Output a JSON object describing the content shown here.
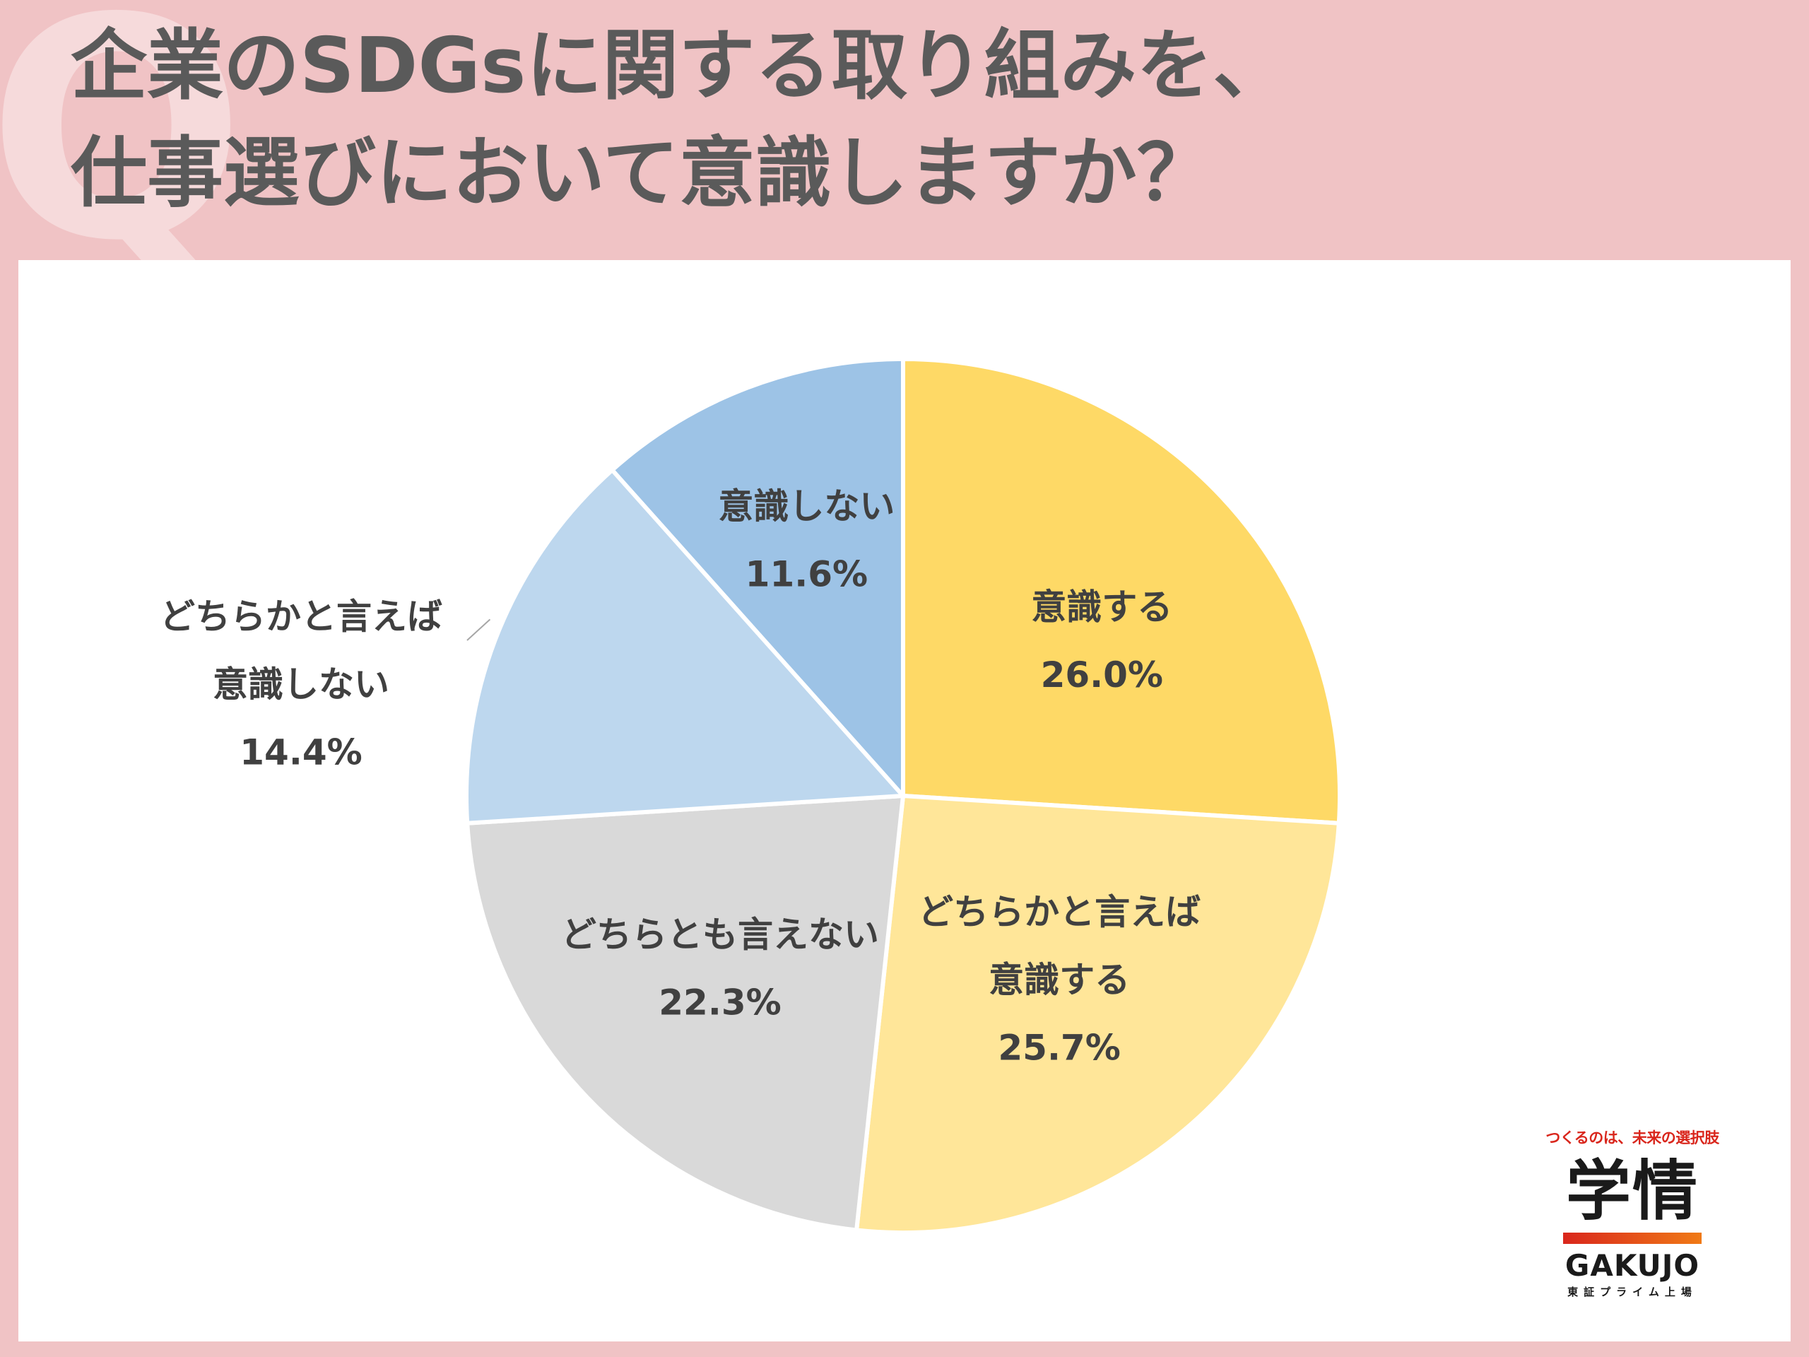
{
  "watermark": "Q",
  "title": {
    "line1": "企業のSDGsに関する取り組みを、",
    "line2": "仕事選びにおいて意識しますか？"
  },
  "chart_data": {
    "type": "pie",
    "title": "企業のSDGsに関する取り組みを、仕事選びにおいて意識しますか？",
    "start": "12 o'clock, clockwise",
    "slices": [
      {
        "label": "意識する",
        "label_lines": [
          "意識する"
        ],
        "value": 26.0,
        "value_text": "26.0%",
        "color": "#fed966",
        "label_position": "inside"
      },
      {
        "label": "どちらかと言えば意識する",
        "label_lines": [
          "どちらかと言えば",
          "意識する"
        ],
        "value": 25.7,
        "value_text": "25.7%",
        "color": "#ffe699",
        "label_position": "inside"
      },
      {
        "label": "どちらとも言えない",
        "label_lines": [
          "どちらとも言えない"
        ],
        "value": 22.3,
        "value_text": "22.3%",
        "color": "#d9d9d9",
        "label_position": "inside"
      },
      {
        "label": "どちらかと言えば意識しない",
        "label_lines": [
          "どちらかと言えば",
          "意識しない"
        ],
        "value": 14.4,
        "value_text": "14.4%",
        "color": "#bdd7ee",
        "label_position": "outside"
      },
      {
        "label": "意識しない",
        "label_lines": [
          "意識しない"
        ],
        "value": 11.6,
        "value_text": "11.6%",
        "color": "#9dc3e6",
        "label_position": "inside"
      }
    ],
    "label_text_color": "#404040",
    "legend": "none"
  },
  "logo": {
    "tagline": "つくるのは、未来の選択肢",
    "kanji": "学情",
    "name": "GAKUJO",
    "sub": "東証プライム上場"
  }
}
